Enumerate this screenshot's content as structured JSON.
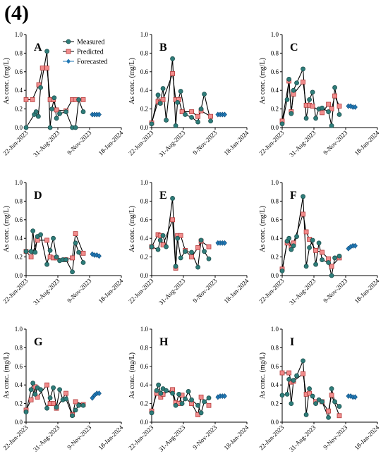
{
  "figure_label": "(4)",
  "colors": {
    "measured_line": "#000000",
    "measured_fill": "#2e7d7a",
    "predicted_fill": "#f08c8c",
    "predicted_stroke": "#b33a3a",
    "forecast_fill": "#1f77b4"
  },
  "chart_data": [
    {
      "panel": "A",
      "type": "line",
      "ylabel": "As conc. (mg/L)",
      "ylim": [
        0,
        1.0
      ],
      "yticks": [
        "0.0",
        "0.2",
        "0.4",
        "0.6",
        "0.8",
        "1.0"
      ],
      "xtick_labels": [
        "22-Jun-2023",
        "31-Aug-2023",
        "9-Nov-2023",
        "18-Jan-2024"
      ],
      "xlim": [
        "2023-06-22",
        "2024-01-18"
      ],
      "legend": [
        "Measured",
        "Predicted",
        "Forecasted"
      ],
      "measured": {
        "x": [
          "2023-06-22",
          "2023-07-10",
          "2023-07-14",
          "2023-07-19",
          "2023-07-24",
          "2023-08-07",
          "2023-08-14",
          "2023-08-18",
          "2023-08-23",
          "2023-08-28",
          "2023-09-04",
          "2023-09-18",
          "2023-10-02",
          "2023-10-09",
          "2023-10-16",
          "2023-10-26"
        ],
        "y": [
          0.0,
          0.14,
          0.17,
          0.12,
          0.43,
          0.82,
          0.0,
          0.2,
          0.32,
          0.1,
          0.15,
          0.17,
          0.0,
          0.0,
          0.3,
          0.17
        ]
      },
      "predicted": {
        "x": [
          "2023-06-22",
          "2023-07-06",
          "2023-07-20",
          "2023-07-28",
          "2023-08-07",
          "2023-08-14",
          "2023-08-21",
          "2023-08-28",
          "2023-09-18",
          "2023-10-02",
          "2023-10-09",
          "2023-10-26"
        ],
        "y": [
          0.3,
          0.3,
          0.46,
          0.64,
          0.64,
          0.3,
          0.3,
          0.19,
          0.18,
          0.3,
          0.3,
          0.3
        ]
      },
      "forecasted": {
        "x": [
          "2023-11-15",
          "2023-11-20",
          "2023-11-25",
          "2023-11-30"
        ],
        "y": [
          0.14,
          0.14,
          0.14,
          0.14
        ]
      }
    },
    {
      "panel": "B",
      "type": "line",
      "ylabel": "As conc. (mg/L)",
      "ylim": [
        0,
        1.0
      ],
      "yticks": [
        "0.0",
        "0.2",
        "0.4",
        "0.6",
        "0.8",
        "1.0"
      ],
      "xtick_labels": [
        "22-Jun-2023",
        "31-Aug-2023",
        "9-Nov-2023",
        "18-Jan-2024"
      ],
      "xlim": [
        "2023-06-22",
        "2024-01-18"
      ],
      "measured": {
        "x": [
          "2023-06-22",
          "2023-07-06",
          "2023-07-11",
          "2023-07-17",
          "2023-07-24",
          "2023-08-07",
          "2023-08-14",
          "2023-08-18",
          "2023-08-25",
          "2023-09-04",
          "2023-09-18",
          "2023-10-02",
          "2023-10-09",
          "2023-10-16",
          "2023-10-30"
        ],
        "y": [
          0.04,
          0.35,
          0.26,
          0.42,
          0.08,
          0.74,
          0.02,
          0.27,
          0.39,
          0.14,
          0.11,
          0.06,
          0.2,
          0.36,
          0.07
        ]
      },
      "predicted": {
        "x": [
          "2023-06-22",
          "2023-07-06",
          "2023-07-11",
          "2023-07-17",
          "2023-08-07",
          "2023-08-14",
          "2023-08-21",
          "2023-08-28",
          "2023-09-18",
          "2023-10-02",
          "2023-10-09",
          "2023-10-30"
        ],
        "y": [
          0.05,
          0.28,
          0.27,
          0.3,
          0.58,
          0.3,
          0.3,
          0.17,
          0.17,
          0.12,
          0.18,
          0.12
        ]
      },
      "forecasted": {
        "x": [
          "2023-11-15",
          "2023-11-20",
          "2023-11-25",
          "2023-11-30"
        ],
        "y": [
          0.14,
          0.14,
          0.14,
          0.14
        ]
      }
    },
    {
      "panel": "C",
      "type": "line",
      "ylabel": "As conc. (mg/L)",
      "ylim": [
        0,
        1.0
      ],
      "yticks": [
        "0.0",
        "0.2",
        "0.4",
        "0.6",
        "0.8",
        "1.0"
      ],
      "xtick_labels": [
        "22-Jun-2023",
        "31-Aug-2023",
        "9-Nov-2023",
        "18-Jan-2024"
      ],
      "xlim": [
        "2023-06-22",
        "2024-01-18"
      ],
      "measured": {
        "x": [
          "2023-06-22",
          "2023-07-03",
          "2023-07-07",
          "2023-07-12",
          "2023-07-17",
          "2023-07-24",
          "2023-08-07",
          "2023-08-14",
          "2023-08-21",
          "2023-08-28",
          "2023-09-04",
          "2023-09-11",
          "2023-09-18",
          "2023-10-02",
          "2023-10-09",
          "2023-10-16",
          "2023-10-26"
        ],
        "y": [
          0.04,
          0.3,
          0.52,
          0.15,
          0.4,
          0.48,
          0.63,
          0.1,
          0.3,
          0.38,
          0.1,
          0.2,
          0.21,
          0.17,
          0.02,
          0.43,
          0.14
        ]
      },
      "predicted": {
        "x": [
          "2023-06-22",
          "2023-07-07",
          "2023-07-12",
          "2023-07-17",
          "2023-08-07",
          "2023-08-14",
          "2023-08-21",
          "2023-08-28",
          "2023-09-18",
          "2023-10-02",
          "2023-10-09",
          "2023-10-16",
          "2023-10-26"
        ],
        "y": [
          0.07,
          0.5,
          0.17,
          0.36,
          0.49,
          0.24,
          0.24,
          0.23,
          0.16,
          0.25,
          0.2,
          0.34,
          0.23
        ]
      },
      "forecasted": {
        "x": [
          "2023-11-15",
          "2023-11-20",
          "2023-11-25",
          "2023-11-30"
        ],
        "y": [
          0.23,
          0.23,
          0.22,
          0.22
        ]
      }
    },
    {
      "panel": "D",
      "type": "line",
      "ylabel": "As conc. (mg/L)",
      "ylim": [
        0,
        1.0
      ],
      "yticks": [
        "0.0",
        "0.2",
        "0.4",
        "0.6",
        "0.8",
        "1.0"
      ],
      "xtick_labels": [
        "22-Jun-2023",
        "31-Aug-2023",
        "9-Nov-2023",
        "18-Jan-2024"
      ],
      "xlim": [
        "2023-06-22",
        "2024-01-18"
      ],
      "measured": {
        "x": [
          "2023-06-22",
          "2023-07-03",
          "2023-07-07",
          "2023-07-12",
          "2023-07-17",
          "2023-07-24",
          "2023-08-07",
          "2023-08-14",
          "2023-08-21",
          "2023-08-28",
          "2023-09-04",
          "2023-09-11",
          "2023-09-18",
          "2023-10-02",
          "2023-10-09",
          "2023-10-16",
          "2023-10-26"
        ],
        "y": [
          0.26,
          0.26,
          0.48,
          0.25,
          0.42,
          0.44,
          0.12,
          0.27,
          0.4,
          0.2,
          0.16,
          0.17,
          0.17,
          0.04,
          0.35,
          0.25,
          0.14
        ]
      },
      "predicted": {
        "x": [
          "2023-06-22",
          "2023-07-03",
          "2023-07-17",
          "2023-08-07",
          "2023-08-14",
          "2023-08-21",
          "2023-08-28",
          "2023-09-18",
          "2023-10-02",
          "2023-10-09",
          "2023-10-26"
        ],
        "y": [
          0.26,
          0.2,
          0.38,
          0.38,
          0.2,
          0.19,
          0.19,
          0.17,
          0.19,
          0.45,
          0.24
        ]
      },
      "forecasted": {
        "x": [
          "2023-11-15",
          "2023-11-20",
          "2023-11-25",
          "2023-11-30"
        ],
        "y": [
          0.23,
          0.22,
          0.22,
          0.21
        ]
      }
    },
    {
      "panel": "E",
      "type": "line",
      "ylabel": "As conc. (mg/L)",
      "ylim": [
        0,
        1.0
      ],
      "yticks": [
        "0.0",
        "0.2",
        "0.4",
        "0.6",
        "0.8",
        "1.0"
      ],
      "xtick_labels": [
        "22-Jun-2023",
        "31-Aug-2023",
        "9-Nov-2023",
        "18-Jan-2024"
      ],
      "xlim": [
        "2023-06-22",
        "2024-01-18"
      ],
      "measured": {
        "x": [
          "2023-06-22",
          "2023-07-06",
          "2023-07-11",
          "2023-07-17",
          "2023-07-24",
          "2023-08-07",
          "2023-08-14",
          "2023-08-18",
          "2023-08-25",
          "2023-09-04",
          "2023-09-18",
          "2023-10-02",
          "2023-10-09",
          "2023-10-16",
          "2023-10-26"
        ],
        "y": [
          0.31,
          0.28,
          0.38,
          0.43,
          0.31,
          0.83,
          0.1,
          0.4,
          0.19,
          0.26,
          0.25,
          0.09,
          0.38,
          0.26,
          0.18
        ]
      },
      "predicted": {
        "x": [
          "2023-06-22",
          "2023-07-06",
          "2023-07-11",
          "2023-07-17",
          "2023-08-07",
          "2023-08-14",
          "2023-08-18",
          "2023-08-25",
          "2023-09-04",
          "2023-09-18",
          "2023-10-02",
          "2023-10-09",
          "2023-10-26"
        ],
        "y": [
          0.31,
          0.44,
          0.43,
          0.33,
          0.6,
          0.08,
          0.43,
          0.43,
          0.27,
          0.2,
          0.3,
          0.37,
          0.31
        ]
      },
      "forecasted": {
        "x": [
          "2023-11-15",
          "2023-11-20",
          "2023-11-25",
          "2023-11-30"
        ],
        "y": [
          0.35,
          0.35,
          0.35,
          0.35
        ]
      }
    },
    {
      "panel": "F",
      "type": "line",
      "ylabel": "As conc. (mg/L)",
      "ylim": [
        0,
        1.0
      ],
      "yticks": [
        "0.0",
        "0.2",
        "0.4",
        "0.6",
        "0.8",
        "1.0"
      ],
      "xtick_labels": [
        "22-Jun-2023",
        "31-Aug-2023",
        "9-Nov-2023",
        "18-Jan-2024"
      ],
      "xlim": [
        "2023-06-22",
        "2024-01-18"
      ],
      "measured": {
        "x": [
          "2023-06-22",
          "2023-07-03",
          "2023-07-07",
          "2023-07-12",
          "2023-07-17",
          "2023-07-24",
          "2023-08-07",
          "2023-08-14",
          "2023-08-21",
          "2023-08-28",
          "2023-09-04",
          "2023-09-11",
          "2023-09-18",
          "2023-10-02",
          "2023-10-09",
          "2023-10-16",
          "2023-10-26"
        ],
        "y": [
          0.05,
          0.37,
          0.4,
          0.28,
          0.32,
          0.42,
          0.85,
          0.1,
          0.3,
          0.38,
          0.12,
          0.35,
          0.17,
          0.14,
          0.0,
          0.19,
          0.21
        ]
      },
      "predicted": {
        "x": [
          "2023-06-22",
          "2023-07-03",
          "2023-07-12",
          "2023-07-17",
          "2023-08-07",
          "2023-08-14",
          "2023-08-21",
          "2023-09-04",
          "2023-09-18",
          "2023-10-02",
          "2023-10-09",
          "2023-10-26"
        ],
        "y": [
          0.07,
          0.35,
          0.3,
          0.35,
          0.66,
          0.47,
          0.39,
          0.27,
          0.25,
          0.18,
          0.1,
          0.19
        ]
      },
      "forecasted": {
        "x": [
          "2023-11-15",
          "2023-11-20",
          "2023-11-25",
          "2023-11-30"
        ],
        "y": [
          0.29,
          0.31,
          0.32,
          0.32
        ]
      }
    },
    {
      "panel": "G",
      "type": "line",
      "ylabel": "As conc. (mg/L)",
      "ylim": [
        0,
        1.0
      ],
      "yticks": [
        "0.0",
        "0.2",
        "0.4",
        "0.6",
        "0.8",
        "1.0"
      ],
      "xtick_labels": [
        "22-Jun-2023",
        "31-Aug-2023",
        "9-Nov-2023",
        "18-Jan-2024"
      ],
      "xlim": [
        "2023-06-22",
        "2024-01-18"
      ],
      "measured": {
        "x": [
          "2023-06-22",
          "2023-07-03",
          "2023-07-07",
          "2023-07-12",
          "2023-07-17",
          "2023-07-24",
          "2023-08-07",
          "2023-08-14",
          "2023-08-21",
          "2023-08-28",
          "2023-09-04",
          "2023-09-11",
          "2023-09-18",
          "2023-10-02",
          "2023-10-09",
          "2023-10-16",
          "2023-10-26"
        ],
        "y": [
          0.11,
          0.35,
          0.42,
          0.3,
          0.37,
          0.35,
          0.15,
          0.26,
          0.37,
          0.16,
          0.35,
          0.24,
          0.25,
          0.07,
          0.13,
          0.18,
          0.18
        ]
      },
      "predicted": {
        "x": [
          "2023-06-22",
          "2023-07-03",
          "2023-07-12",
          "2023-07-17",
          "2023-08-07",
          "2023-08-14",
          "2023-08-21",
          "2023-08-28",
          "2023-09-18",
          "2023-10-02",
          "2023-10-09",
          "2023-10-26"
        ],
        "y": [
          0.13,
          0.24,
          0.38,
          0.27,
          0.4,
          0.2,
          0.2,
          0.15,
          0.31,
          0.08,
          0.22,
          0.19
        ]
      },
      "forecasted": {
        "x": [
          "2023-11-15",
          "2023-11-20",
          "2023-11-25",
          "2023-11-30"
        ],
        "y": [
          0.26,
          0.29,
          0.31,
          0.31
        ]
      }
    },
    {
      "panel": "H",
      "type": "line",
      "ylabel": "As conc. (mg/L)",
      "ylim": [
        0,
        1.0
      ],
      "yticks": [
        "0.0",
        "0.2",
        "0.4",
        "0.6",
        "0.8",
        "1.0"
      ],
      "xtick_labels": [
        "22-Jun-2023",
        "31-Aug-2023",
        "9-Nov-2023",
        "18-Jan-2024"
      ],
      "xlim": [
        "2023-06-22",
        "2024-01-18"
      ],
      "measured": {
        "x": [
          "2023-06-22",
          "2023-07-03",
          "2023-07-07",
          "2023-07-12",
          "2023-07-17",
          "2023-07-24",
          "2023-08-07",
          "2023-08-14",
          "2023-08-21",
          "2023-08-28",
          "2023-09-04",
          "2023-09-11",
          "2023-09-18",
          "2023-10-02",
          "2023-10-09",
          "2023-10-16",
          "2023-10-26"
        ],
        "y": [
          0.1,
          0.34,
          0.4,
          0.31,
          0.36,
          0.34,
          0.31,
          0.18,
          0.3,
          0.2,
          0.25,
          0.33,
          0.24,
          0.18,
          0.1,
          0.22,
          0.26
        ]
      },
      "predicted": {
        "x": [
          "2023-06-22",
          "2023-07-03",
          "2023-07-12",
          "2023-07-17",
          "2023-08-07",
          "2023-08-14",
          "2023-08-21",
          "2023-08-28",
          "2023-09-18",
          "2023-10-02",
          "2023-10-09",
          "2023-10-26"
        ],
        "y": [
          0.12,
          0.31,
          0.27,
          0.3,
          0.35,
          0.21,
          0.2,
          0.29,
          0.2,
          0.08,
          0.27,
          0.18
        ]
      },
      "forecasted": {
        "x": [
          "2023-11-15",
          "2023-11-20",
          "2023-11-25",
          "2023-11-30"
        ],
        "y": [
          0.27,
          0.28,
          0.28,
          0.28
        ]
      }
    },
    {
      "panel": "I",
      "type": "line",
      "ylabel": "As conc. (mg/L)",
      "ylim": [
        0,
        1.0
      ],
      "yticks": [
        "0.0",
        "0.2",
        "0.4",
        "0.6",
        "0.8",
        "1.0"
      ],
      "xtick_labels": [
        "22-Jun-2023",
        "31-Aug-2023",
        "9-Nov-2023",
        "18-Jan-2024"
      ],
      "xlim": [
        "2023-06-22",
        "2024-01-18"
      ],
      "measured": {
        "x": [
          "2023-06-22",
          "2023-07-03",
          "2023-07-07",
          "2023-07-12",
          "2023-07-17",
          "2023-07-24",
          "2023-08-07",
          "2023-08-14",
          "2023-08-21",
          "2023-08-28",
          "2023-09-04",
          "2023-09-11",
          "2023-09-18",
          "2023-10-02",
          "2023-10-09",
          "2023-10-16",
          "2023-10-26"
        ],
        "y": [
          0.29,
          0.3,
          0.46,
          0.2,
          0.45,
          0.5,
          0.66,
          0.08,
          0.36,
          0.28,
          0.2,
          0.24,
          0.22,
          0.05,
          0.36,
          0.22,
          0.17
        ]
      },
      "predicted": {
        "x": [
          "2023-06-22",
          "2023-07-07",
          "2023-07-12",
          "2023-07-17",
          "2023-08-07",
          "2023-08-14",
          "2023-08-21",
          "2023-09-04",
          "2023-09-18",
          "2023-10-02",
          "2023-10-09",
          "2023-10-26"
        ],
        "y": [
          0.53,
          0.53,
          0.43,
          0.44,
          0.52,
          0.3,
          0.31,
          0.22,
          0.22,
          0.12,
          0.29,
          0.07
        ]
      },
      "forecasted": {
        "x": [
          "2023-11-15",
          "2023-11-20",
          "2023-11-25",
          "2023-11-30"
        ],
        "y": [
          0.28,
          0.28,
          0.27,
          0.27
        ]
      }
    }
  ]
}
